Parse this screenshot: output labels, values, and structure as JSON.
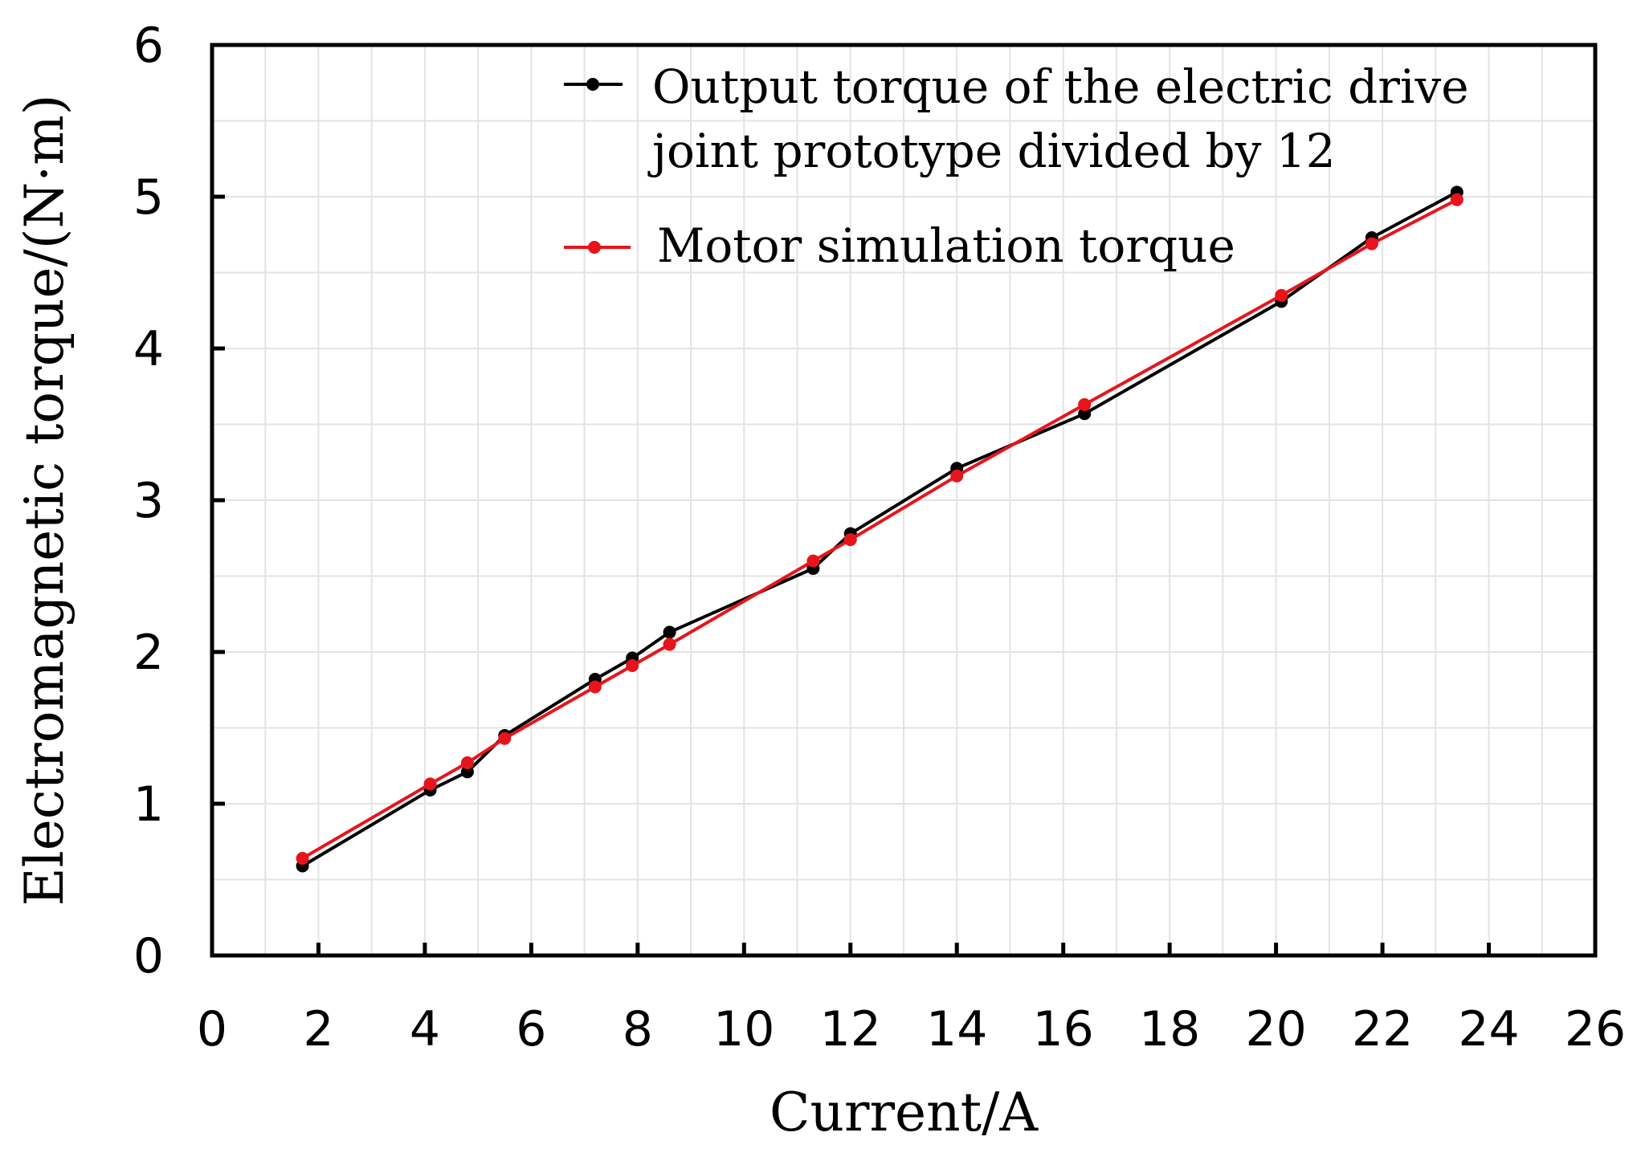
{
  "chart_data": {
    "type": "line",
    "title": "",
    "xlabel": "Current/A",
    "ylabel": "Electromagnetic torque/(N·m)",
    "xlim": [
      0,
      26
    ],
    "ylim": [
      0,
      6
    ],
    "x_ticks": [
      "0",
      "2",
      "4",
      "6",
      "8",
      "10",
      "12",
      "14",
      "16",
      "18",
      "20",
      "22",
      "24",
      "26"
    ],
    "y_ticks": [
      "0",
      "1",
      "2",
      "3",
      "4",
      "5",
      "6"
    ],
    "grid": true,
    "legend_position": "top-center",
    "series": [
      {
        "name": "Output torque of the electric drive joint prototype divided by 12",
        "legend_lines": [
          "Output torque of the electric drive",
          "joint prototype divided by 12"
        ],
        "color": "#000000",
        "x": [
          1.7,
          4.1,
          4.8,
          5.5,
          7.2,
          7.9,
          8.6,
          11.3,
          12.0,
          14.0,
          16.4,
          20.1,
          21.8,
          23.4
        ],
        "y": [
          0.59,
          1.09,
          1.21,
          1.45,
          1.82,
          1.96,
          2.13,
          2.55,
          2.78,
          3.21,
          3.57,
          4.31,
          4.73,
          5.03
        ]
      },
      {
        "name": "Motor simulation torque",
        "legend_lines": [
          "Motor simulation torque"
        ],
        "color": "#e8141c",
        "x": [
          1.7,
          4.1,
          4.8,
          5.5,
          7.2,
          7.9,
          8.6,
          11.3,
          12.0,
          14.0,
          16.4,
          20.1,
          21.8,
          23.4
        ],
        "y": [
          0.64,
          1.13,
          1.27,
          1.43,
          1.77,
          1.91,
          2.05,
          2.6,
          2.74,
          3.16,
          3.63,
          4.35,
          4.69,
          4.98
        ]
      }
    ]
  }
}
